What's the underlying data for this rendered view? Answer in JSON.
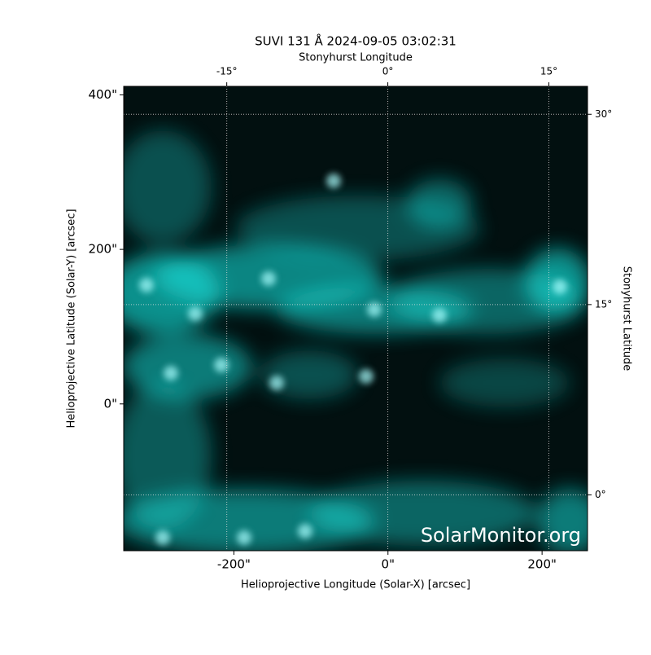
{
  "chart_data": {
    "type": "image",
    "title": "SUVI 131 Å 2024-09-05 03:02:31",
    "x_label": "Helioprojective Longitude (Solar-X) [arcsec]",
    "y_label": "Helioprojective Latitude (Solar-Y) [arcsec]",
    "x2_label": "Stonyhurst Longitude",
    "y2_label": "Stonyhurst Latitude",
    "watermark": "SolarMonitor.org",
    "color": "#19e6e0",
    "xlim": [
      -343,
      259
    ],
    "xticks": [
      {
        "value": -200,
        "label": "-200\""
      },
      {
        "value": 0,
        "label": "0\""
      },
      {
        "value": 200,
        "label": "200\""
      }
    ],
    "ylim": [
      -190,
      411
    ],
    "yticks": [
      {
        "value": 0,
        "label": "0\""
      },
      {
        "value": 200,
        "label": "200\""
      },
      {
        "value": 400,
        "label": "400\""
      }
    ],
    "x2lim": [
      -24.6,
      18.6
    ],
    "x2ticks": [
      {
        "value": -15,
        "label": "-15°"
      },
      {
        "value": 0,
        "label": "0°"
      },
      {
        "value": 15,
        "label": "15°"
      }
    ],
    "y2lim": [
      -4.4,
      32.2
    ],
    "y2ticks": [
      {
        "value": 0,
        "label": "0°"
      },
      {
        "value": 15,
        "label": "15°"
      },
      {
        "value": 30,
        "label": "30°"
      }
    ],
    "grid": true
  }
}
